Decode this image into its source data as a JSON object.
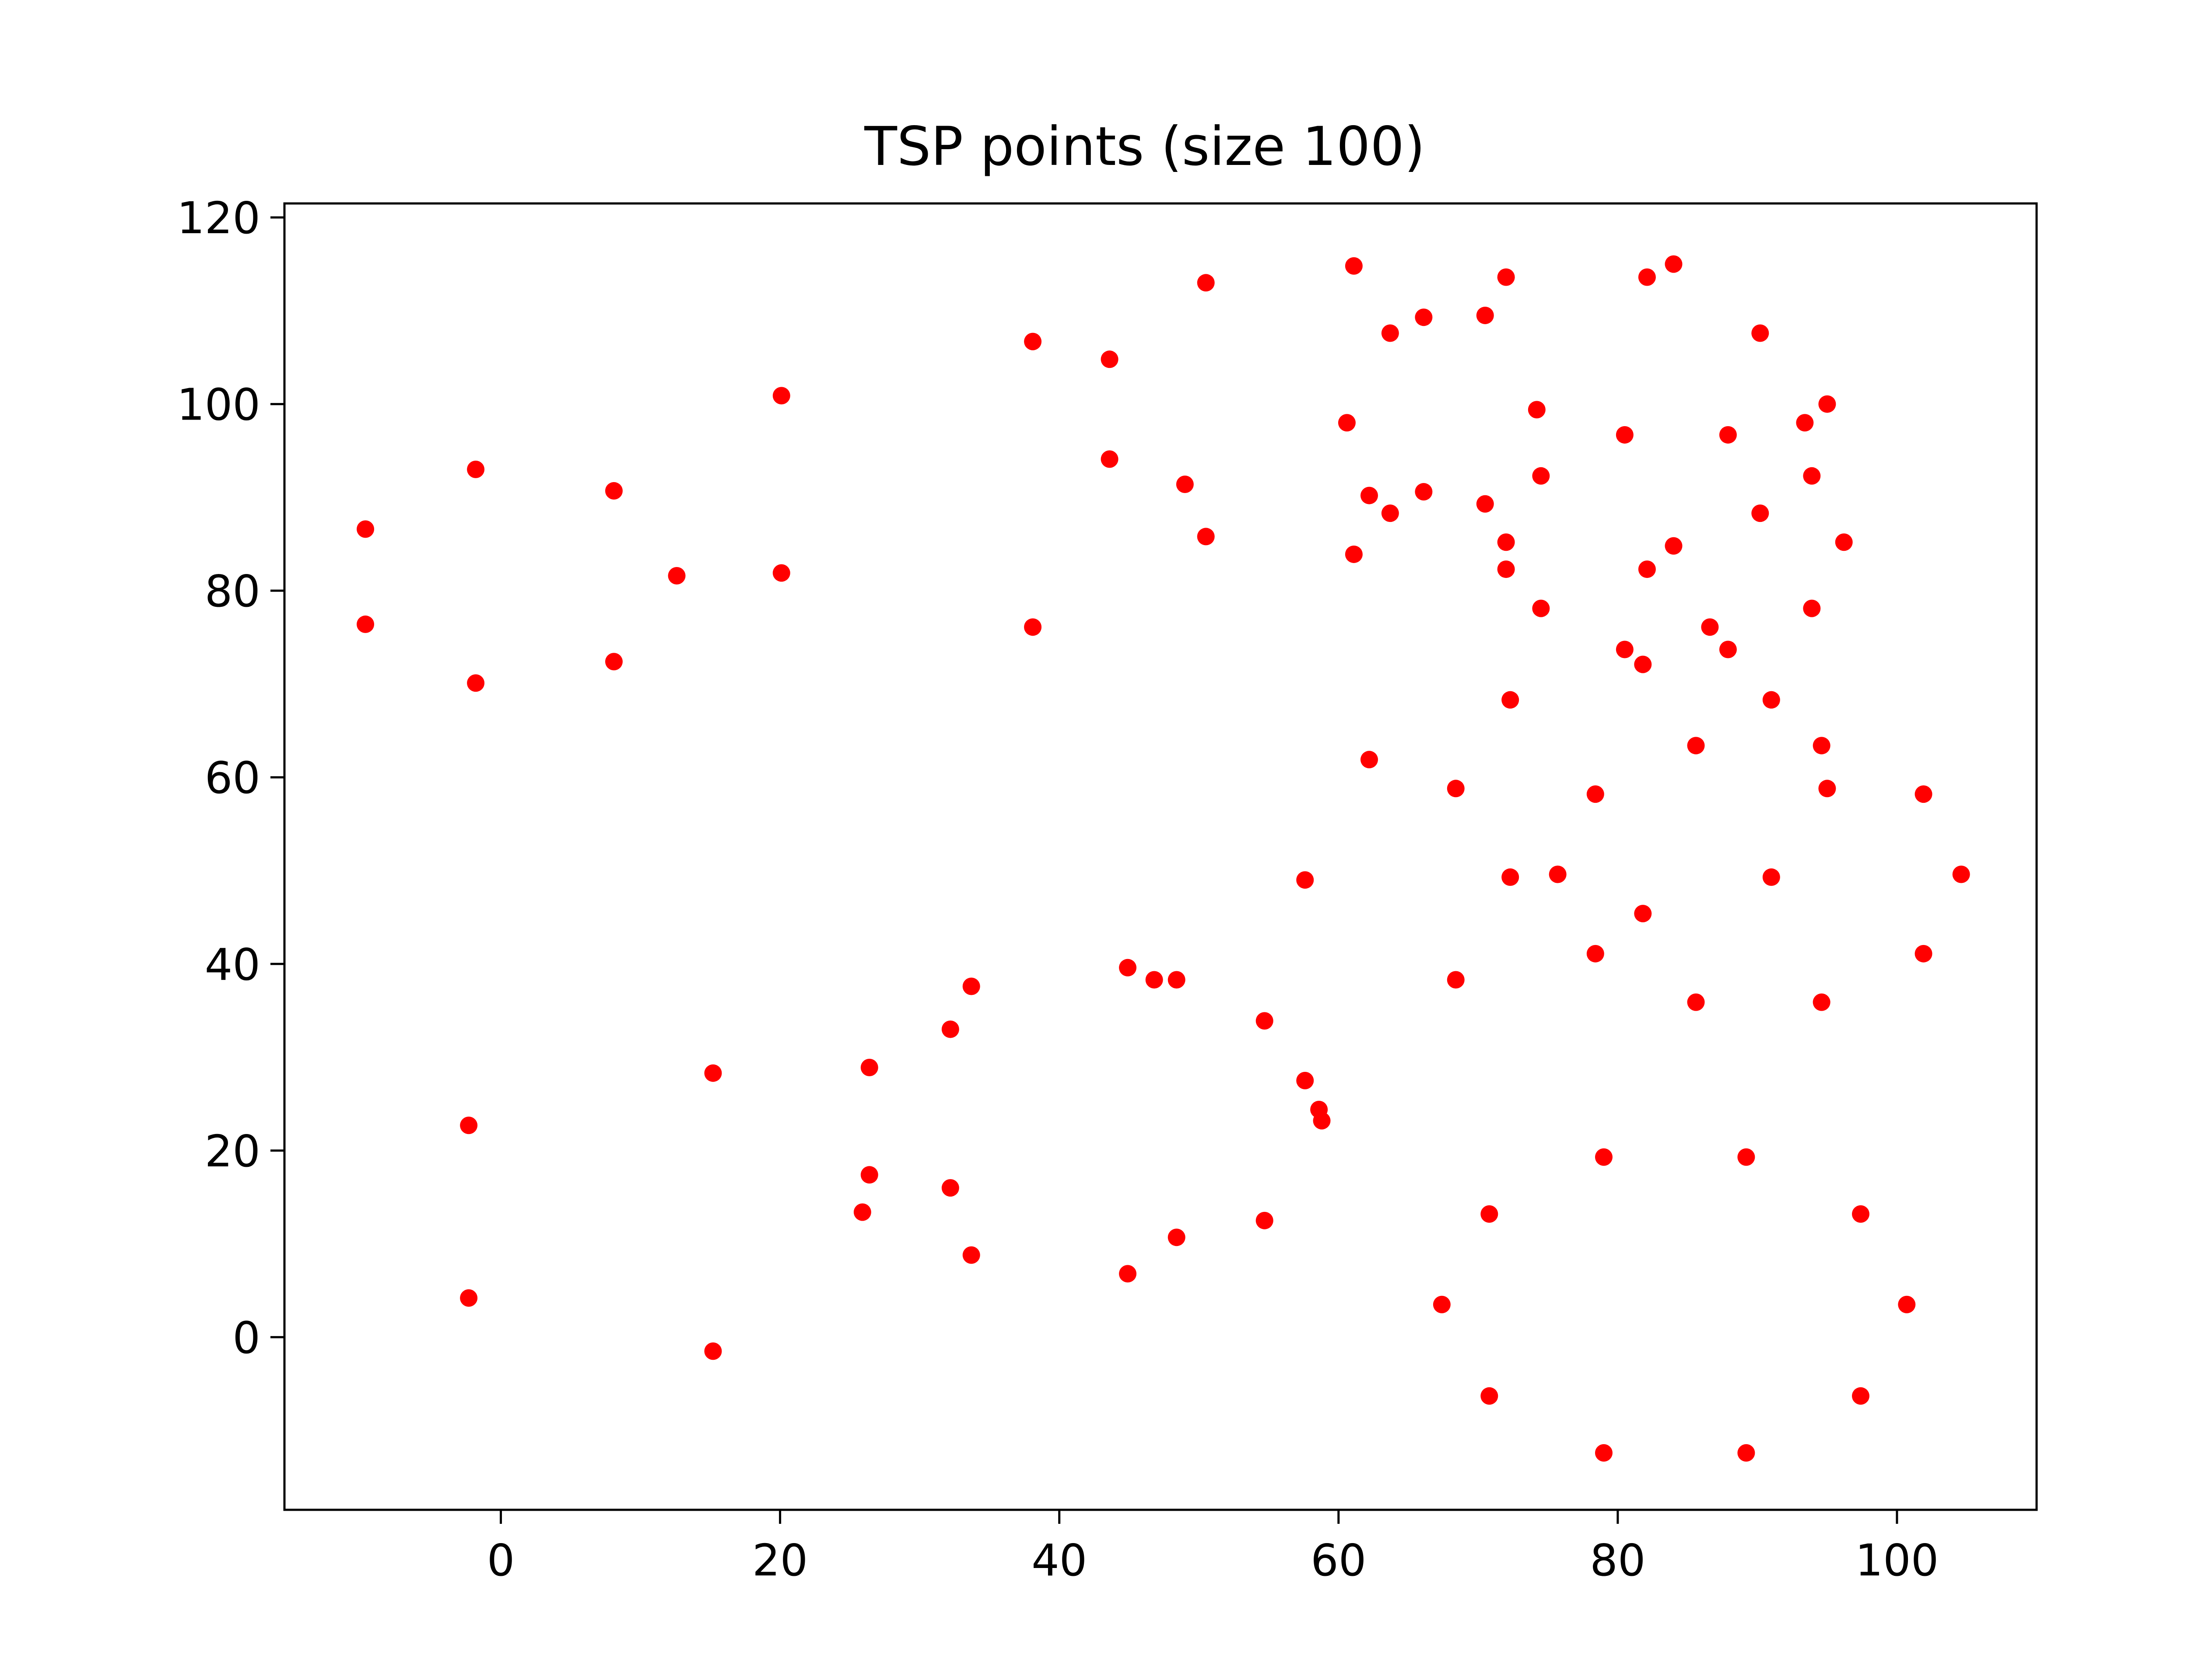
{
  "chart_data": {
    "type": "scatter",
    "title": "TSP points (size 100)",
    "xlabel": "",
    "ylabel": "",
    "xlim": [
      -15.5,
      110
    ],
    "ylim": [
      -18.5,
      121.5
    ],
    "xticks": [
      0,
      20,
      40,
      60,
      80,
      100
    ],
    "yticks": [
      0,
      20,
      40,
      60,
      80,
      100,
      120
    ],
    "grid": false,
    "legend": "none",
    "marker_color": "#ff0000",
    "series": [
      {
        "points": [
          [
            -9.7,
            86.6
          ],
          [
            -9.7,
            76.4
          ],
          [
            -1.8,
            93.0
          ],
          [
            -1.8,
            70.1
          ],
          [
            8.1,
            90.7
          ],
          [
            8.1,
            72.4
          ],
          [
            12.6,
            81.6
          ],
          [
            20.1,
            100.9
          ],
          [
            20.1,
            81.9
          ],
          [
            38.1,
            106.7
          ],
          [
            38.1,
            76.1
          ],
          [
            43.6,
            104.8
          ],
          [
            43.6,
            94.1
          ],
          [
            49.0,
            91.4
          ],
          [
            50.5,
            113.0
          ],
          [
            50.5,
            85.8
          ],
          [
            60.6,
            98.0
          ],
          [
            61.1,
            114.8
          ],
          [
            61.1,
            83.9
          ],
          [
            62.2,
            90.2
          ],
          [
            62.2,
            61.9
          ],
          [
            63.7,
            107.6
          ],
          [
            63.7,
            88.3
          ],
          [
            66.1,
            109.3
          ],
          [
            66.1,
            90.6
          ],
          [
            70.5,
            109.5
          ],
          [
            70.5,
            89.3
          ],
          [
            72.0,
            113.6
          ],
          [
            72.0,
            85.2
          ],
          [
            72.0,
            82.3
          ],
          [
            72.3,
            68.3
          ],
          [
            74.2,
            99.4
          ],
          [
            74.5,
            92.3
          ],
          [
            74.5,
            78.1
          ],
          [
            80.5,
            96.7
          ],
          [
            80.5,
            73.7
          ],
          [
            81.8,
            72.1
          ],
          [
            82.1,
            113.6
          ],
          [
            82.1,
            82.3
          ],
          [
            84.0,
            115.0
          ],
          [
            84.0,
            84.8
          ],
          [
            86.6,
            76.1
          ],
          [
            87.9,
            96.7
          ],
          [
            87.9,
            73.7
          ],
          [
            90.2,
            107.6
          ],
          [
            90.2,
            88.3
          ],
          [
            91.0,
            68.3
          ],
          [
            93.4,
            98.0
          ],
          [
            93.9,
            92.3
          ],
          [
            93.9,
            78.1
          ],
          [
            95.0,
            100.0
          ],
          [
            96.2,
            85.2
          ],
          [
            68.4,
            58.8
          ],
          [
            78.4,
            58.2
          ],
          [
            85.6,
            63.4
          ],
          [
            94.6,
            63.4
          ],
          [
            95.0,
            58.8
          ],
          [
            101.9,
            58.2
          ],
          [
            57.6,
            49.0
          ],
          [
            72.3,
            49.3
          ],
          [
            75.7,
            49.6
          ],
          [
            91.0,
            49.3
          ],
          [
            104.6,
            49.6
          ],
          [
            81.8,
            45.4
          ],
          [
            78.4,
            41.1
          ],
          [
            101.9,
            41.1
          ],
          [
            44.9,
            39.6
          ],
          [
            46.8,
            38.3
          ],
          [
            48.4,
            38.3
          ],
          [
            68.4,
            38.3
          ],
          [
            85.6,
            35.9
          ],
          [
            94.6,
            35.9
          ],
          [
            33.7,
            37.6
          ],
          [
            32.2,
            33.0
          ],
          [
            54.7,
            33.9
          ],
          [
            26.4,
            28.9
          ],
          [
            15.2,
            28.3
          ],
          [
            57.6,
            27.5
          ],
          [
            58.6,
            24.4
          ],
          [
            58.8,
            23.2
          ],
          [
            -2.3,
            22.7
          ],
          [
            79.0,
            19.3
          ],
          [
            89.2,
            19.3
          ],
          [
            26.4,
            17.4
          ],
          [
            32.2,
            16.0
          ],
          [
            25.9,
            13.4
          ],
          [
            70.8,
            13.2
          ],
          [
            97.4,
            13.2
          ],
          [
            54.7,
            12.5
          ],
          [
            48.4,
            10.7
          ],
          [
            33.7,
            8.8
          ],
          [
            44.9,
            6.8
          ],
          [
            -2.3,
            4.2
          ],
          [
            67.4,
            3.5
          ],
          [
            100.7,
            3.5
          ],
          [
            15.2,
            -1.5
          ],
          [
            70.8,
            -6.3
          ],
          [
            97.4,
            -6.3
          ],
          [
            79.0,
            -12.4
          ],
          [
            89.2,
            -12.4
          ]
        ]
      }
    ]
  }
}
